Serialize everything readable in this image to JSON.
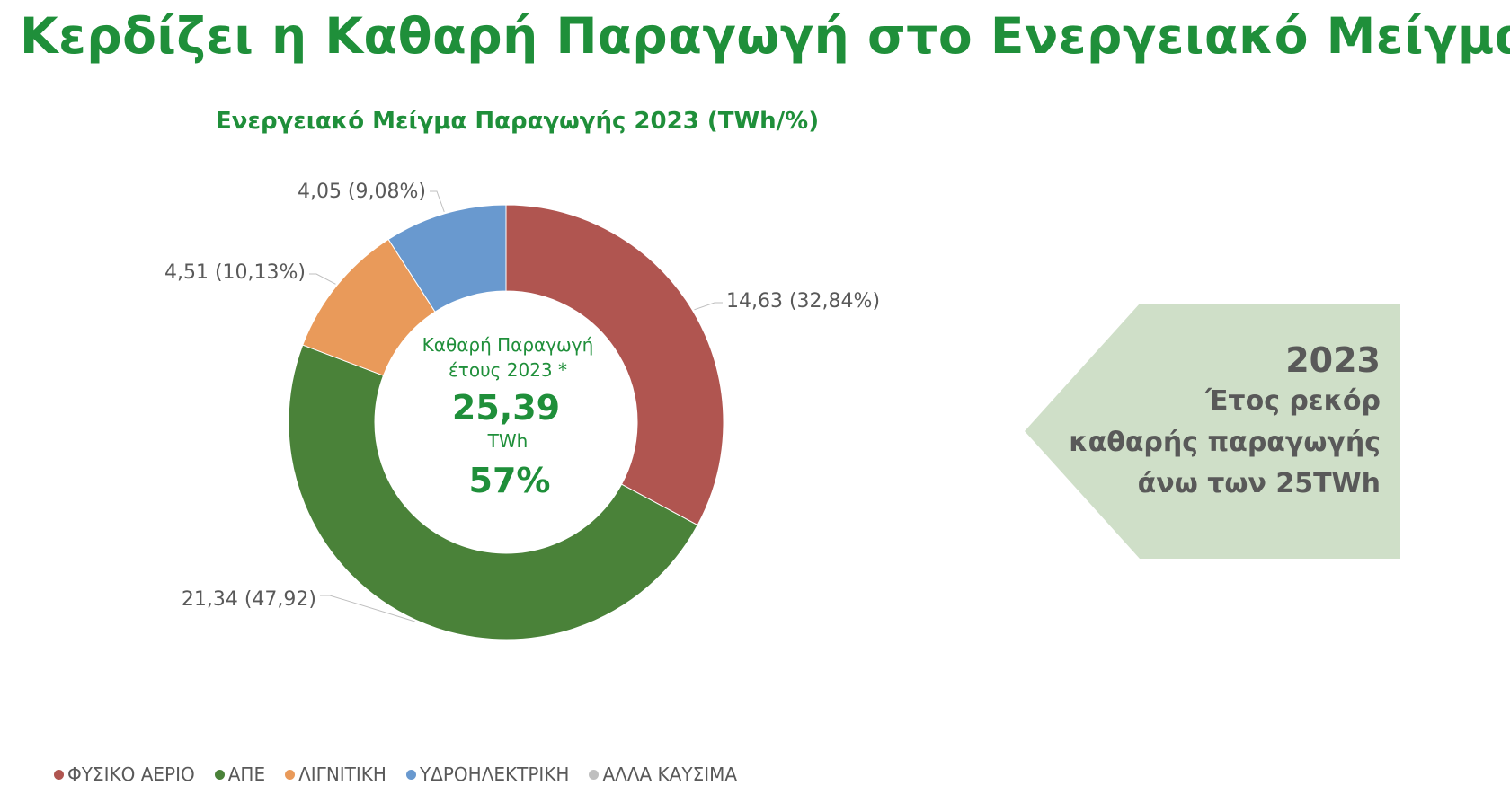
{
  "title": "Κερδίζει η Καθαρή Παραγωγή στο Ενεργειακό Μείγμα",
  "colors": {
    "accent": "#1f8f3a",
    "callout_bg": "#cfdfc8"
  },
  "chart_data": {
    "type": "donut",
    "title": "Ενεργειακό Μείγμα Παραγωγής 2023 (TWh/%)",
    "series": [
      {
        "name": "ΦΥΣΙΚΟ ΑΕΡΙΟ",
        "value": 14.63,
        "percent": 32.84,
        "label": "14,63 (32,84%)",
        "color": "#b05550"
      },
      {
        "name": "ΑΠΕ",
        "value": 21.34,
        "percent": 47.92,
        "label": "21,34 (47,92)",
        "color": "#4a8239"
      },
      {
        "name": "ΛΙΓΝΙΤΙΚΗ",
        "value": 4.51,
        "percent": 10.13,
        "label": "4,51 (10,13%)",
        "color": "#e99a5a"
      },
      {
        "name": "ΥΔΡΟΗΛΕΚΤΡΙΚΗ",
        "value": 4.05,
        "percent": 9.08,
        "label": "4,05 (9,08%)",
        "color": "#6999cf"
      },
      {
        "name": "ΑΛΛΑ ΚΑΥΣΙΜΑ",
        "value": 0,
        "percent": 0,
        "label": "",
        "color": "#bfbfbf"
      }
    ],
    "center": {
      "line1": "Καθαρή Παραγωγή",
      "line2": "έτους 2023 *",
      "value": "25,39",
      "unit": "TWh",
      "percent": "57%"
    }
  },
  "callout": {
    "year": "2023",
    "line1": "Έτος ρεκόρ",
    "line2": "καθαρής παραγωγής",
    "line3": "άνω των 25TWh"
  }
}
